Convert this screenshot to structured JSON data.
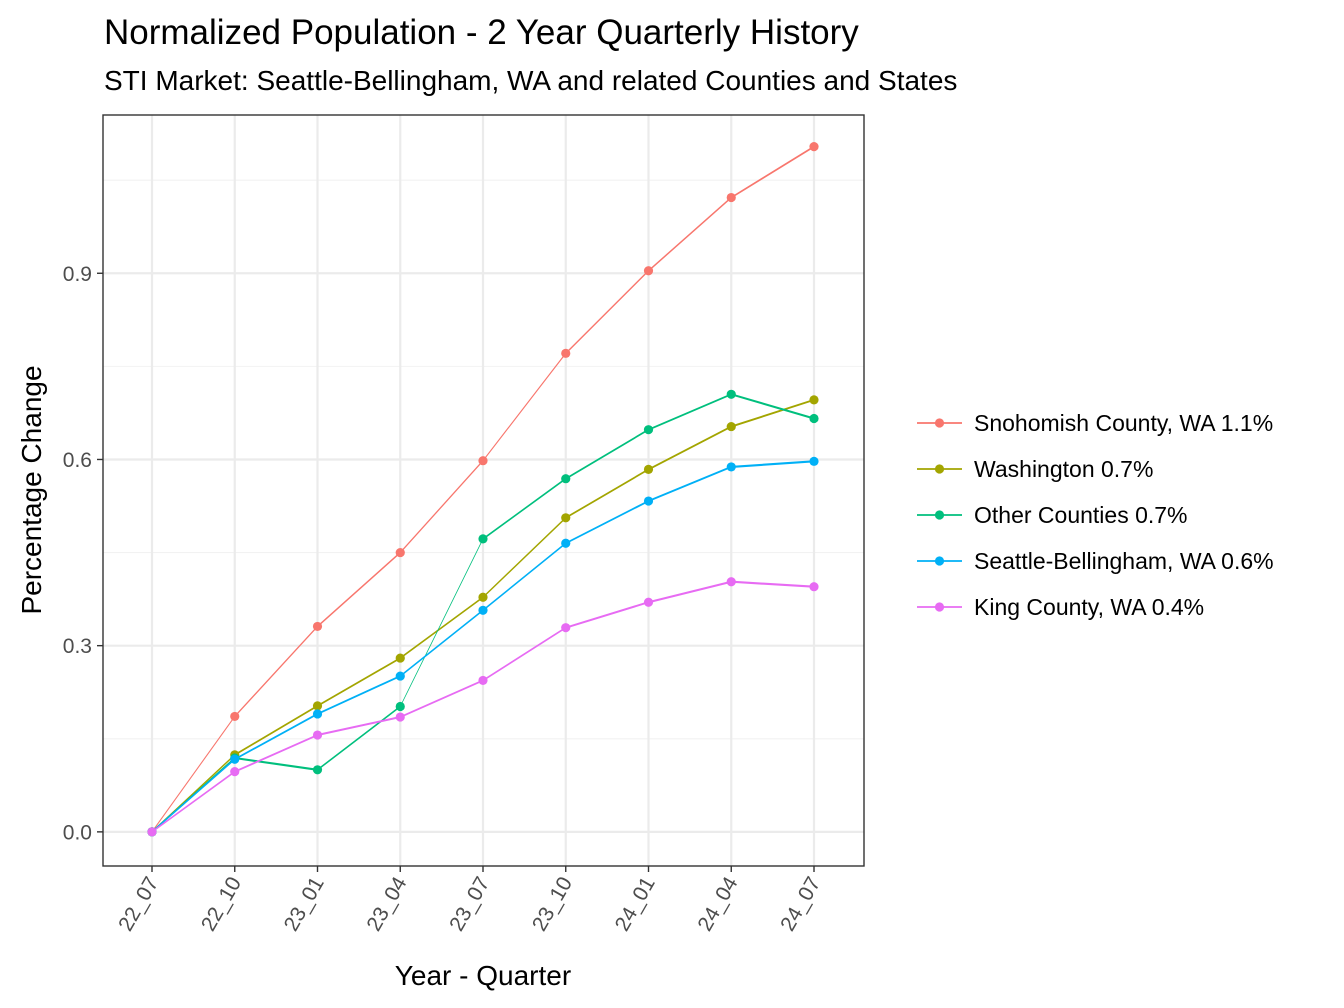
{
  "chart_data": {
    "type": "line",
    "title": "Normalized Population - 2 Year Quarterly History",
    "subtitle": "STI Market: Seattle-Bellingham, WA and related Counties and States",
    "xlabel": "Year - Quarter",
    "ylabel": "Percentage Change",
    "categories": [
      "22_07",
      "22_10",
      "23_01",
      "23_04",
      "23_07",
      "23_10",
      "24_01",
      "24_04",
      "24_07"
    ],
    "ylim": [
      -0.055,
      1.155
    ],
    "y_ticks": [
      0.0,
      0.3,
      0.6,
      0.9
    ],
    "y_tick_labels": [
      "0.0",
      "0.3",
      "0.6",
      "0.9"
    ],
    "grid": true,
    "legend_position": "right",
    "series": [
      {
        "name": "Snohomish County, WA 1.1%",
        "color": "#F8766D",
        "values": [
          0.0,
          0.186,
          0.331,
          0.45,
          0.598,
          0.771,
          0.904,
          1.022,
          1.104
        ]
      },
      {
        "name": "Washington 0.7%",
        "color": "#A3A500",
        "values": [
          0.0,
          0.124,
          0.203,
          0.28,
          0.378,
          0.506,
          0.584,
          0.653,
          0.696
        ]
      },
      {
        "name": "Other Counties 0.7%",
        "color": "#00BF7D",
        "values": [
          0.0,
          0.119,
          0.1,
          0.202,
          0.472,
          0.569,
          0.648,
          0.705,
          0.666
        ]
      },
      {
        "name": "Seattle-Bellingham, WA 0.6%",
        "color": "#00B0F6",
        "values": [
          0.0,
          0.117,
          0.19,
          0.251,
          0.357,
          0.465,
          0.533,
          0.588,
          0.597
        ]
      },
      {
        "name": "King County, WA 0.4%",
        "color": "#E76BF3",
        "values": [
          0.0,
          0.097,
          0.156,
          0.185,
          0.244,
          0.329,
          0.37,
          0.403,
          0.395
        ]
      }
    ]
  }
}
